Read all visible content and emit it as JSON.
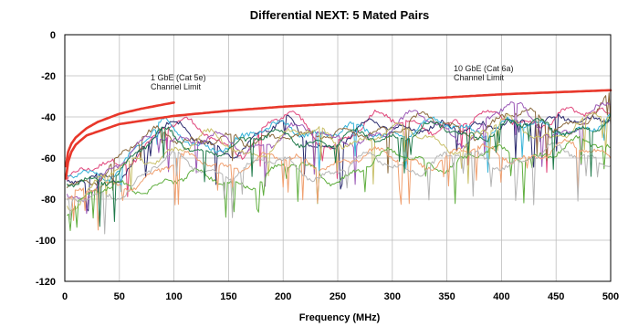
{
  "chart_data": {
    "type": "line",
    "title": "Differential NEXT: 5 Mated Pairs",
    "xlabel": "Frequency (MHz)",
    "ylabel": "",
    "xlim": [
      0,
      500
    ],
    "ylim": [
      -120,
      0
    ],
    "x_ticks": [
      0,
      50,
      100,
      150,
      200,
      250,
      300,
      350,
      400,
      450,
      500
    ],
    "y_ticks": [
      0,
      -20,
      -40,
      -60,
      -80,
      -100,
      -120
    ],
    "grid": true,
    "legend": "none",
    "limit_lines": [
      {
        "label_line1": "1 GbE (Cat 5e)",
        "label_line2": "Channel Limit",
        "color": "#e8372a",
        "x": [
          1,
          3,
          6,
          10,
          20,
          30,
          50,
          70,
          100
        ],
        "y": [
          -64,
          -57,
          -53,
          -50,
          -45.5,
          -42.5,
          -38.5,
          -36,
          -33
        ]
      },
      {
        "label_line1": "10 GbE (Cat 6a)",
        "label_line2": "Channel Limit",
        "color": "#e8372a",
        "x": [
          1,
          3,
          6,
          10,
          20,
          50,
          100,
          150,
          200,
          250,
          300,
          350,
          400,
          450,
          500
        ],
        "y": [
          -70,
          -62,
          -57,
          -53.5,
          -49,
          -43.5,
          -39.5,
          -37,
          -35,
          -33.5,
          -32,
          -30.5,
          -29,
          -28,
          -27
        ]
      }
    ],
    "series": [
      {
        "color": "#e0457a",
        "x": [
          5,
          50,
          90,
          130,
          165,
          205,
          245,
          285,
          325,
          365,
          405,
          445,
          500
        ],
        "y": [
          -72,
          -62,
          -45,
          -48,
          -55,
          -40,
          -52,
          -43,
          -41,
          -46,
          -37,
          -44,
          -35
        ]
      },
      {
        "color": "#2a2a6e",
        "x": [
          5,
          50,
          90,
          130,
          165,
          205,
          245,
          285,
          325,
          365,
          405,
          445,
          500
        ],
        "y": [
          -76,
          -65,
          -47,
          -50,
          -57,
          -42,
          -55,
          -45,
          -42,
          -50,
          -38,
          -46,
          -36
        ]
      },
      {
        "color": "#35b3d8",
        "x": [
          5,
          50,
          90,
          130,
          165,
          205,
          245,
          285,
          325,
          365,
          405,
          445,
          500
        ],
        "y": [
          -70,
          -63,
          -46,
          -52,
          -54,
          -41,
          -50,
          -47,
          -44,
          -48,
          -40,
          -50,
          -38
        ]
      },
      {
        "color": "#8b6a3e",
        "x": [
          5,
          50,
          90,
          130,
          165,
          205,
          245,
          285,
          325,
          365,
          405,
          445,
          500
        ],
        "y": [
          -74,
          -60,
          -48,
          -49,
          -56,
          -44,
          -53,
          -44,
          -43,
          -47,
          -39,
          -45,
          -33
        ]
      },
      {
        "color": "#9b59b6",
        "x": [
          5,
          50,
          90,
          130,
          165,
          205,
          245,
          285,
          325,
          365,
          405,
          445,
          500
        ],
        "y": [
          -78,
          -66,
          -46,
          -51,
          -58,
          -43,
          -54,
          -46,
          -42,
          -49,
          -36,
          -47,
          -37
        ]
      },
      {
        "color": "#c9c06a",
        "x": [
          5,
          50,
          90,
          130,
          165,
          205,
          245,
          285,
          325,
          365,
          405,
          445,
          500
        ],
        "y": [
          -80,
          -68,
          -55,
          -52,
          -57,
          -49,
          -51,
          -48,
          -50,
          -52,
          -45,
          -47,
          -42
        ]
      },
      {
        "color": "#5fae3e",
        "x": [
          5,
          50,
          90,
          130,
          165,
          205,
          245,
          285,
          325,
          365,
          405,
          445,
          500
        ],
        "y": [
          -84,
          -75,
          -70,
          -72,
          -70,
          -66,
          -68,
          -62,
          -60,
          -62,
          -58,
          -56,
          -55
        ]
      },
      {
        "color": "#f0a070",
        "x": [
          5,
          50,
          90,
          130,
          165,
          205,
          245,
          285,
          325,
          365,
          405,
          445,
          500
        ],
        "y": [
          -82,
          -72,
          -65,
          -62,
          -61,
          -63,
          -60,
          -61,
          -60,
          -59,
          -57,
          -58,
          -56
        ]
      },
      {
        "color": "#b5b5b5",
        "x": [
          5,
          50,
          90,
          130,
          165,
          205,
          245,
          285,
          325,
          365,
          405,
          445,
          500
        ],
        "y": [
          -85,
          -74,
          -63,
          -64,
          -66,
          -63,
          -67,
          -62,
          -63,
          -61,
          -60,
          -59,
          -58
        ]
      },
      {
        "color": "#1f7a4a",
        "x": [
          5,
          50,
          90,
          130,
          165,
          205,
          245,
          285,
          325,
          365,
          405,
          445,
          500
        ],
        "y": [
          -75,
          -64,
          -50,
          -54,
          -56,
          -46,
          -55,
          -49,
          -45,
          -51,
          -41,
          -49,
          -39
        ]
      }
    ]
  }
}
